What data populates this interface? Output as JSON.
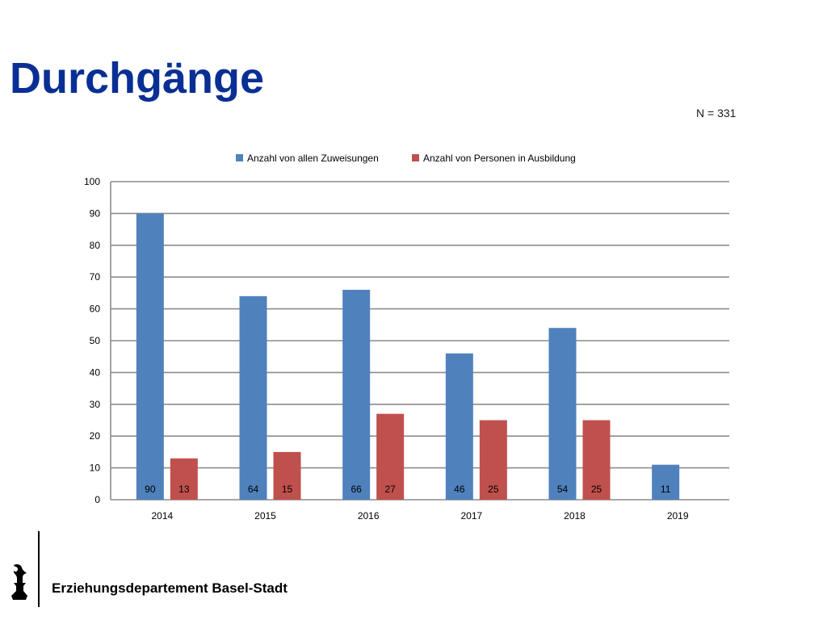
{
  "slide": {
    "title": "Durchgänge",
    "sample_size": "N = 331",
    "footer_label": "Erziehungsdepartement Basel-Stadt",
    "logo_icon": "baselstab-icon"
  },
  "colors": {
    "title": "#0a2f94",
    "series_blue": "#4f81bd",
    "series_red": "#c0504d"
  },
  "chart_data": {
    "type": "bar",
    "categories": [
      "2014",
      "2015",
      "2016",
      "2017",
      "2018",
      "2019"
    ],
    "series": [
      {
        "name": "Anzahl von allen Zuweisungen",
        "values": [
          90,
          64,
          66,
          46,
          54,
          11
        ],
        "color": "#4f81bd"
      },
      {
        "name": "Anzahl von Personen in Ausbildung",
        "values": [
          13,
          15,
          27,
          25,
          25,
          null
        ],
        "color": "#c0504d"
      }
    ],
    "ylim": [
      0,
      100
    ],
    "yticks": [
      0,
      10,
      20,
      30,
      40,
      50,
      60,
      70,
      80,
      90,
      100
    ],
    "grid": true,
    "legend_position": "top",
    "data_labels_position": "inside-bottom"
  }
}
